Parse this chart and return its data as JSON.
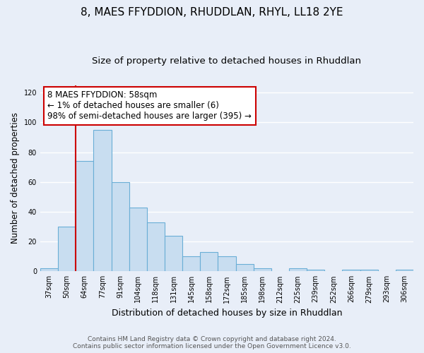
{
  "title": "8, MAES FFYDDION, RHUDDLAN, RHYL, LL18 2YE",
  "subtitle": "Size of property relative to detached houses in Rhuddlan",
  "xlabel": "Distribution of detached houses by size in Rhuddlan",
  "ylabel": "Number of detached properties",
  "bar_values": [
    2,
    30,
    74,
    95,
    60,
    43,
    33,
    24,
    10,
    13,
    10,
    5,
    2,
    0,
    2,
    1,
    0,
    1,
    1,
    0,
    1
  ],
  "bar_labels": [
    "37sqm",
    "50sqm",
    "64sqm",
    "77sqm",
    "91sqm",
    "104sqm",
    "118sqm",
    "131sqm",
    "145sqm",
    "158sqm",
    "172sqm",
    "185sqm",
    "198sqm",
    "212sqm",
    "225sqm",
    "239sqm",
    "252sqm",
    "266sqm",
    "279sqm",
    "293sqm",
    "306sqm"
  ],
  "bar_color": "#c8ddf0",
  "bar_edge_color": "#6aaed6",
  "ylim": [
    0,
    125
  ],
  "yticks": [
    0,
    20,
    40,
    60,
    80,
    100,
    120
  ],
  "red_line_x": 1.5,
  "annotation_title": "8 MAES FFYDDION: 58sqm",
  "annotation_line1": "← 1% of detached houses are smaller (6)",
  "annotation_line2": "98% of semi-detached houses are larger (395) →",
  "annotation_box_color": "#ffffff",
  "annotation_border_color": "#cc0000",
  "footnote1": "Contains HM Land Registry data © Crown copyright and database right 2024.",
  "footnote2": "Contains public sector information licensed under the Open Government Licence v3.0.",
  "bg_color": "#e8eef8",
  "plot_bg_color": "#e8eef8",
  "grid_color": "#ffffff",
  "title_fontsize": 11,
  "subtitle_fontsize": 9.5,
  "ylabel_fontsize": 8.5,
  "xlabel_fontsize": 9,
  "tick_fontsize": 7,
  "footnote_fontsize": 6.5,
  "annotation_fontsize": 8.5
}
